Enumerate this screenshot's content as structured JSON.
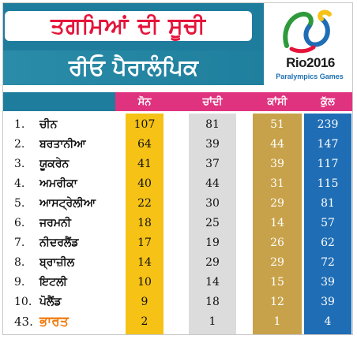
{
  "header": {
    "title": "ਤਗਮਿਆਂ ਦੀ ਸੂਚੀ",
    "subtitle": "ਰੀਓ ਪੈਰਾਲੰਪਿਕ",
    "logo_word_prefix": "Rio",
    "logo_word_digits": "2016",
    "logo_sub": "Paralympics Games"
  },
  "columns": {
    "gold": "ਸੋਨ",
    "silver": "ਚਾਂਦੀ",
    "bronze": "ਕਾਂਸੀ",
    "total": "ਕੁੱਲ"
  },
  "colors": {
    "header_pink": "#e0337f",
    "gold": "#f5c215",
    "silver": "#dcdcdc",
    "bronze": "#c8a24a",
    "total": "#1f6db5",
    "title_red": "#e5143b",
    "band_teal": "#1e7c9c",
    "india_orange": "#f07d0f"
  },
  "chart_data": {
    "type": "table",
    "title": "ਤਗਮਿਆਂ ਦੀ ਸੂਚੀ",
    "subtitle": "ਰੀਓ ਪੈਰਾਲੰਪਿਕ",
    "columns": [
      "ਸੋਨ",
      "ਚਾਂਦੀ",
      "ਕਾਂਸੀ",
      "ਕੁੱਲ"
    ],
    "rows": [
      {
        "rank": "1.",
        "country": "ਚੀਨ",
        "gold": "107",
        "silver": "81",
        "bronze": "51",
        "total": "239"
      },
      {
        "rank": "2.",
        "country": "ਬਰਤਾਨੀਆ",
        "gold": "64",
        "silver": "39",
        "bronze": "44",
        "total": "147"
      },
      {
        "rank": "3.",
        "country": "ਯੂਕਰੇਨ",
        "gold": "41",
        "silver": "37",
        "bronze": "39",
        "total": "117"
      },
      {
        "rank": "4.",
        "country": "ਅਮਰੀਕਾ",
        "gold": "40",
        "silver": "44",
        "bronze": "31",
        "total": "115"
      },
      {
        "rank": "5.",
        "country": "ਆਸਟ੍ਰੇਲੀਆ",
        "gold": "22",
        "silver": "30",
        "bronze": "29",
        "total": "81"
      },
      {
        "rank": "6.",
        "country": "ਜਰਮਨੀ",
        "gold": "18",
        "silver": "25",
        "bronze": "14",
        "total": "57"
      },
      {
        "rank": "7.",
        "country": "ਨੀਦਰਲੈਂਡ",
        "gold": "17",
        "silver": "19",
        "bronze": "26",
        "total": "62"
      },
      {
        "rank": "8.",
        "country": "ਬ੍ਰਾਜ਼ੀਲ",
        "gold": "14",
        "silver": "29",
        "bronze": "29",
        "total": "72"
      },
      {
        "rank": "9.",
        "country": "ਇਟਲੀ",
        "gold": "10",
        "silver": "14",
        "bronze": "15",
        "total": "39"
      },
      {
        "rank": "10.",
        "country": "ਪੋਲੈਂਡ",
        "gold": "9",
        "silver": "18",
        "bronze": "12",
        "total": "39"
      },
      {
        "rank": "43.",
        "country": "ਭਾਰਤ",
        "gold": "2",
        "silver": "1",
        "bronze": "1",
        "total": "4"
      }
    ]
  }
}
